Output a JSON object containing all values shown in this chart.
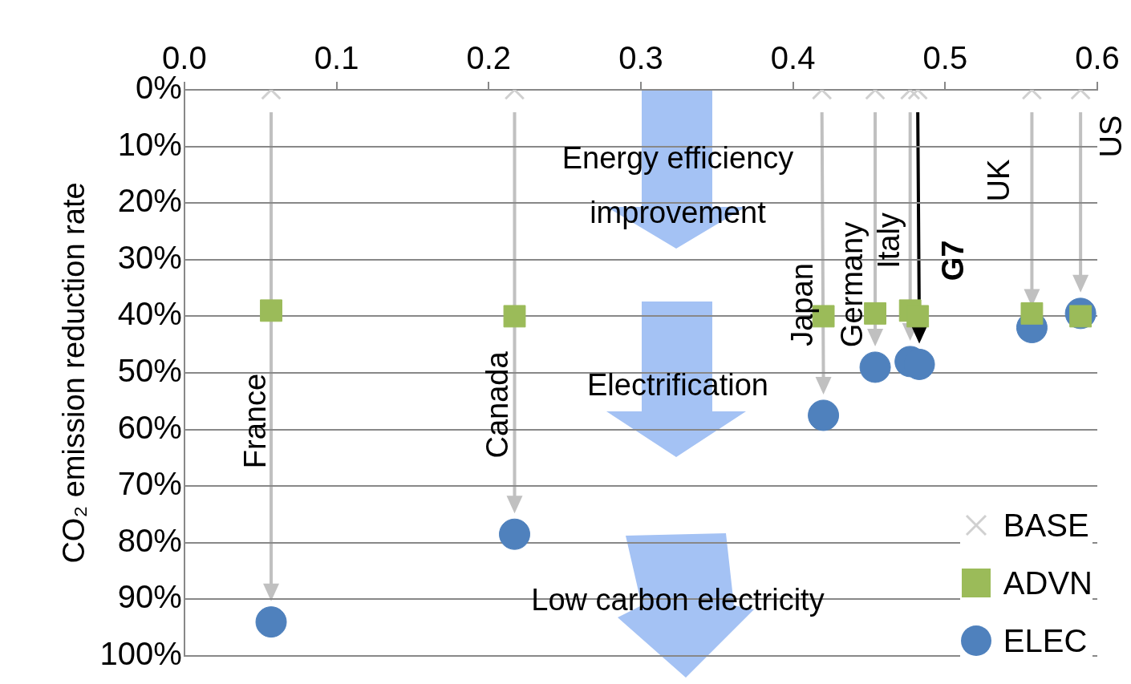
{
  "chart_data": {
    "type": "scatter",
    "ylabel": "CO₂ emission reduction rate",
    "xlim": [
      0,
      0.6
    ],
    "xticks": [
      {
        "value": 0,
        "label": "0.0"
      },
      0.1,
      0.2,
      0.3,
      0.4,
      0.5,
      0.6
    ],
    "ylim": [
      100,
      0
    ],
    "yticks": [
      {
        "value": 0,
        "label": "0%"
      },
      {
        "value": 10,
        "label": "10%"
      },
      {
        "value": 20,
        "label": "20%"
      },
      {
        "value": 30,
        "label": "30%"
      },
      {
        "value": 40,
        "label": "40%"
      },
      {
        "value": 50,
        "label": "50%"
      },
      {
        "value": 60,
        "label": "60%"
      },
      {
        "value": 70,
        "label": "70%"
      },
      {
        "value": 80,
        "label": "80%"
      },
      {
        "value": 90,
        "label": "90%"
      },
      {
        "value": 100,
        "label": "100%"
      }
    ],
    "grid": "y",
    "legend": "bottom right",
    "series": [
      {
        "name": "BASE",
        "color": "#d0d0d0",
        "marker": "cross",
        "x": [
          0.057,
          0.217,
          0.419,
          0.454,
          0.477,
          0.482,
          0.557,
          0.589
        ],
        "values": [
          0,
          0,
          0,
          0,
          0,
          0,
          0,
          0
        ]
      },
      {
        "name": "ADVN",
        "color": "#9bbb59",
        "marker": "square",
        "x": [
          0.057,
          0.217,
          0.42,
          0.454,
          0.477,
          0.482,
          0.557,
          0.589
        ],
        "values": [
          39,
          40,
          40,
          39.5,
          39,
          40,
          39.5,
          40
        ]
      },
      {
        "name": "ELEC",
        "color": "#4f81bd",
        "marker": "circle",
        "x": [
          0.057,
          0.217,
          0.42,
          0.454,
          0.477,
          0.483,
          0.557,
          0.589
        ],
        "values": [
          94,
          78.5,
          57.5,
          49,
          48,
          48.5,
          42,
          39.5
        ]
      }
    ],
    "annotations": [
      "Energy efficiency improvement",
      "Electrification",
      "Low carbon electricity",
      "France",
      "Canada",
      "Japan",
      "Germany",
      "Italy",
      "G7",
      "UK",
      "US"
    ]
  }
}
